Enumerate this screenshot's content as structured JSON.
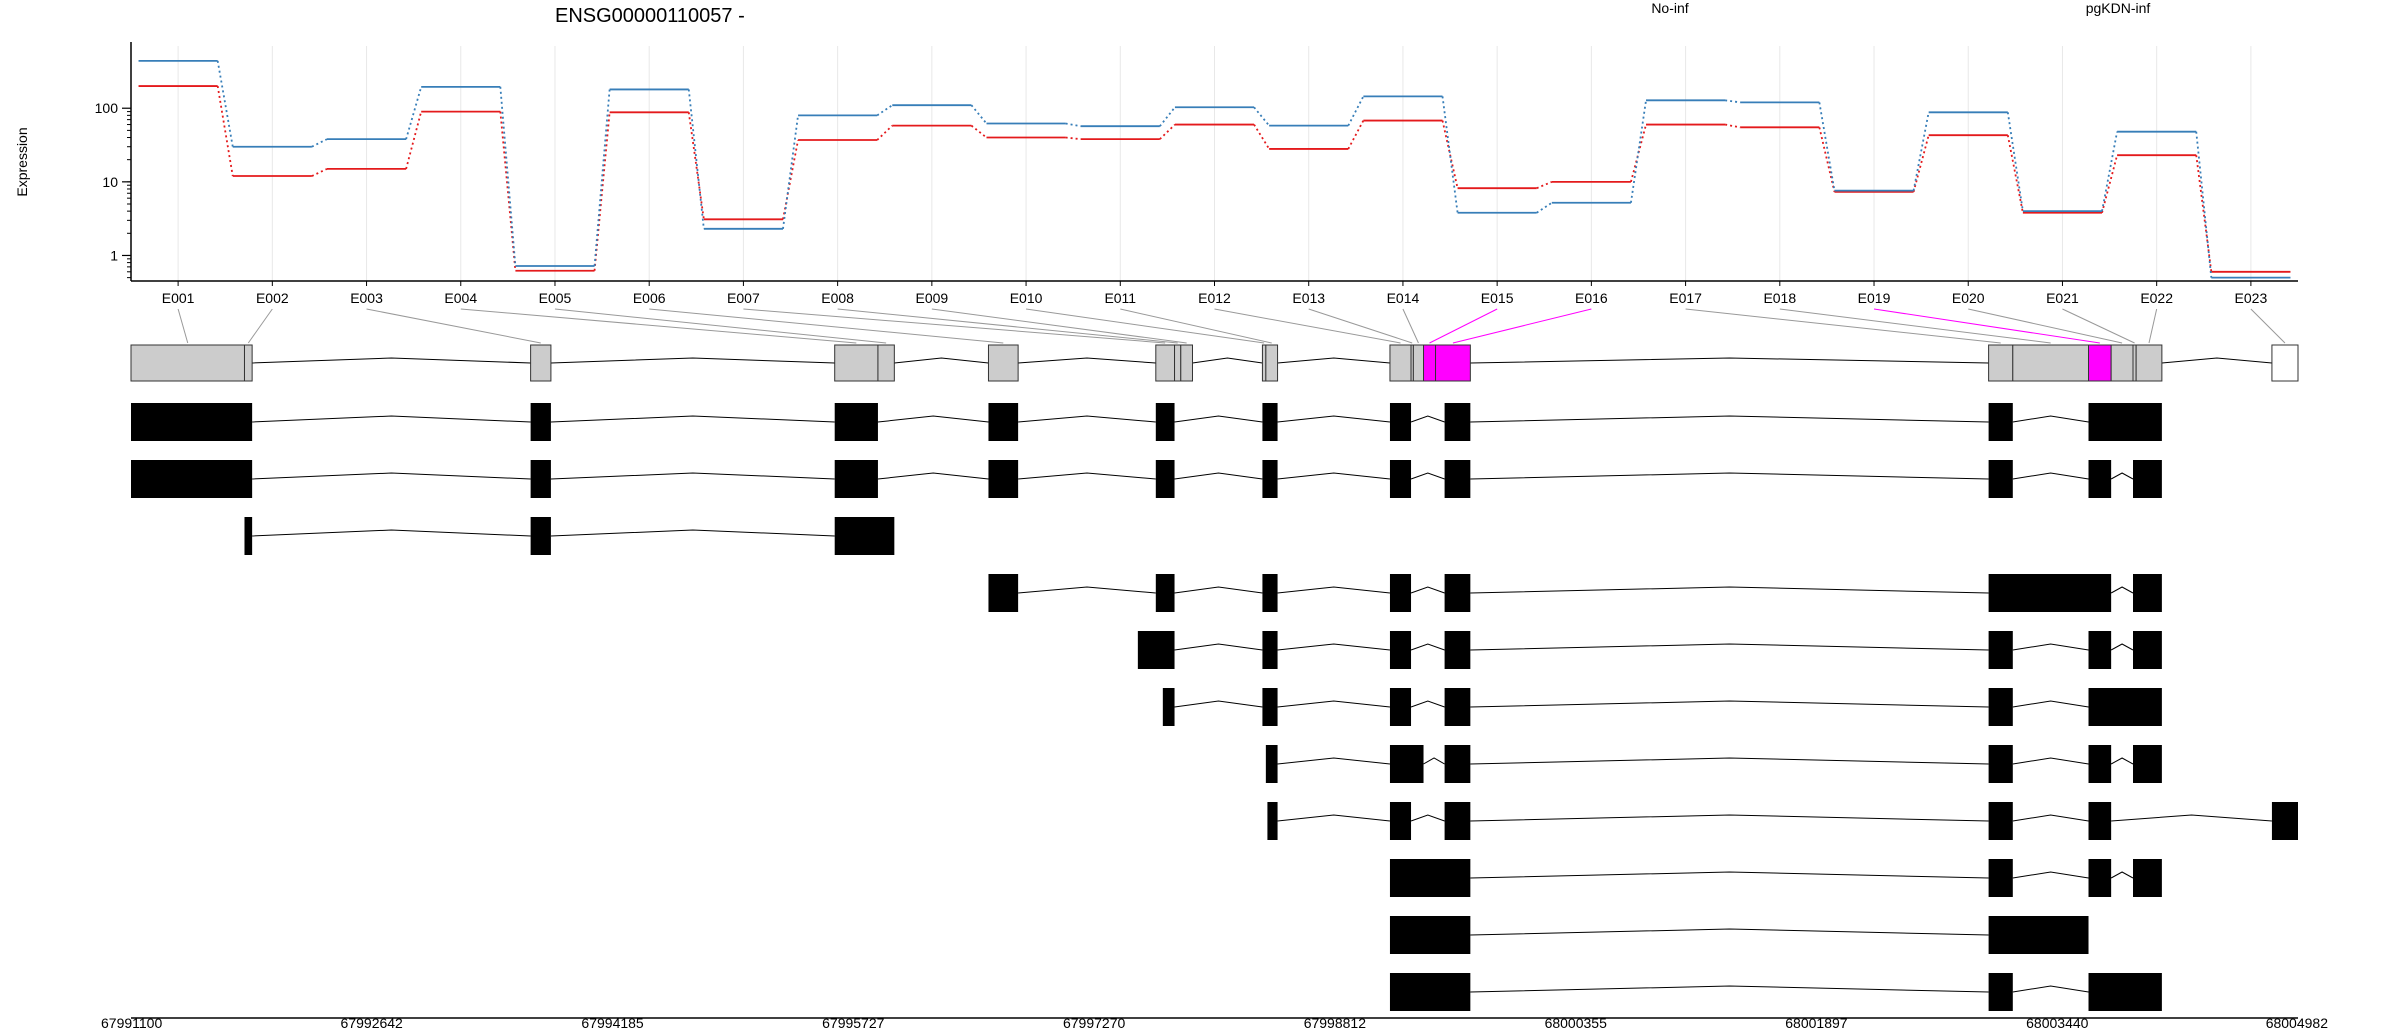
{
  "chart_data": {
    "type": "line",
    "title": "ENSG00000110057 -",
    "ylabel": "Expression",
    "y_scale": "log",
    "y_ticks": [
      "1",
      "10",
      "100"
    ],
    "ylim": [
      0.45,
      700
    ],
    "categories": [
      "E001",
      "E002",
      "E003",
      "E004",
      "E005",
      "E006",
      "E007",
      "E008",
      "E009",
      "E010",
      "E011",
      "E012",
      "E013",
      "E014",
      "E015",
      "E016",
      "E017",
      "E018",
      "E019",
      "E020",
      "E021",
      "E022",
      "E023"
    ],
    "series": [
      {
        "name": "No-inf",
        "color": "#e41a1c",
        "values": [
          200,
          12,
          15,
          90,
          0.62,
          88,
          3.1,
          37,
          58,
          40,
          38,
          60,
          28,
          68,
          8.2,
          10,
          60,
          55,
          7.3,
          43,
          3.8,
          23,
          0.6
        ]
      },
      {
        "name": "pgKDN-inf",
        "color": "#377eb8",
        "values": [
          440,
          30,
          38,
          195,
          0.72,
          180,
          2.3,
          80,
          110,
          62,
          57,
          103,
          58,
          145,
          3.8,
          5.2,
          128,
          120,
          7.6,
          88,
          4.0,
          48,
          0.5
        ]
      }
    ],
    "grid": true,
    "legend": "top-right",
    "genomic_axis": {
      "range": [
        67991100,
        68004982
      ],
      "tick_labels": [
        "67991100",
        "67992642",
        "67994185",
        "67995727",
        "67997270",
        "67998812",
        "68000355",
        "68001897",
        "68003440",
        "68004982"
      ]
    },
    "highlight_color": "#ff00ff",
    "significant_exons": [
      "E015",
      "E016",
      "E019"
    ],
    "exon_segments": [
      {
        "id": "E001",
        "start": 67991100,
        "end": 67991827
      },
      {
        "id": "E002",
        "start": 67991827,
        "end": 67991876
      },
      {
        "id": "E003",
        "start": 67993660,
        "end": 67993790
      },
      {
        "id": "E004",
        "start": 67995608,
        "end": 67995885
      },
      {
        "id": "E005",
        "start": 67995885,
        "end": 67995990
      },
      {
        "id": "E006",
        "start": 67996593,
        "end": 67996783
      },
      {
        "id": "E007",
        "start": 67997665,
        "end": 67997785
      },
      {
        "id": "E008",
        "start": 67997785,
        "end": 67997825
      },
      {
        "id": "E009",
        "start": 67997825,
        "end": 67997900
      },
      {
        "id": "E010",
        "start": 67998348,
        "end": 67998370
      },
      {
        "id": "E011",
        "start": 67998370,
        "end": 67998445
      },
      {
        "id": "E012",
        "start": 67999165,
        "end": 67999300
      },
      {
        "id": "E013",
        "start": 67999300,
        "end": 67999315
      },
      {
        "id": "E014",
        "start": 67999315,
        "end": 67999380
      },
      {
        "id": "E015",
        "start": 67999380,
        "end": 67999457
      },
      {
        "id": "E016",
        "start": 67999457,
        "end": 67999680
      },
      {
        "id": "E017",
        "start": 68003000,
        "end": 68003155
      },
      {
        "id": "E018",
        "start": 68003155,
        "end": 68003640
      },
      {
        "id": "E019",
        "start": 68003640,
        "end": 68003785
      },
      {
        "id": "E020",
        "start": 68003785,
        "end": 68003925
      },
      {
        "id": "E021",
        "start": 68003925,
        "end": 68003945
      },
      {
        "id": "E022",
        "start": 68003945,
        "end": 68004110
      },
      {
        "id": "E023",
        "start": 68004815,
        "end": 68004982
      }
    ],
    "transcripts": [
      {
        "exons": [
          [
            67991100,
            67991876
          ],
          [
            67993660,
            67993790
          ],
          [
            67995608,
            67995885
          ],
          [
            67996593,
            67996783
          ],
          [
            67997665,
            67997785
          ],
          [
            67998348,
            67998445
          ],
          [
            67999165,
            67999300
          ],
          [
            67999515,
            67999680
          ],
          [
            68003000,
            68003155
          ],
          [
            68003640,
            68004110
          ]
        ]
      },
      {
        "exons": [
          [
            67991100,
            67991876
          ],
          [
            67993660,
            67993790
          ],
          [
            67995608,
            67995885
          ],
          [
            67996593,
            67996783
          ],
          [
            67997665,
            67997785
          ],
          [
            67998348,
            67998445
          ],
          [
            67999165,
            67999300
          ],
          [
            67999515,
            67999680
          ],
          [
            68003000,
            68003155
          ],
          [
            68003640,
            68003785
          ],
          [
            68003925,
            68004110
          ]
        ]
      },
      {
        "exons": [
          [
            67991827,
            67991876
          ],
          [
            67993660,
            67993790
          ],
          [
            67995608,
            67995990
          ]
        ]
      },
      {
        "exons": [
          [
            67996593,
            67996783
          ],
          [
            67997665,
            67997785
          ],
          [
            67998348,
            67998445
          ],
          [
            67999165,
            67999300
          ],
          [
            67999515,
            67999680
          ],
          [
            68003000,
            68003785
          ],
          [
            68003925,
            68004110
          ]
        ]
      },
      {
        "exons": [
          [
            67997550,
            67997785
          ],
          [
            67998348,
            67998445
          ],
          [
            67999165,
            67999300
          ],
          [
            67999515,
            67999680
          ],
          [
            68003000,
            68003155
          ],
          [
            68003640,
            68003785
          ],
          [
            68003925,
            68004110
          ]
        ]
      },
      {
        "exons": [
          [
            67997710,
            67997785
          ],
          [
            67998348,
            67998445
          ],
          [
            67999165,
            67999300
          ],
          [
            67999515,
            67999680
          ],
          [
            68003000,
            68003155
          ],
          [
            68003640,
            68004110
          ]
        ]
      },
      {
        "exons": [
          [
            67998370,
            67998445
          ],
          [
            67999165,
            67999380
          ],
          [
            67999515,
            67999680
          ],
          [
            68003000,
            68003155
          ],
          [
            68003640,
            68003785
          ],
          [
            68003925,
            68004110
          ]
        ]
      },
      {
        "exons": [
          [
            67998380,
            67998445
          ],
          [
            67999165,
            67999300
          ],
          [
            67999515,
            67999680
          ],
          [
            68003000,
            68003155
          ],
          [
            68003640,
            68003785
          ],
          [
            68004815,
            68004982
          ]
        ]
      },
      {
        "exons": [
          [
            67999165,
            67999680
          ],
          [
            68003000,
            68003155
          ],
          [
            68003640,
            68003785
          ],
          [
            68003925,
            68004110
          ]
        ]
      },
      {
        "exons": [
          [
            67999165,
            67999680
          ],
          [
            68003000,
            68003640
          ]
        ]
      },
      {
        "exons": [
          [
            67999165,
            67999680
          ],
          [
            68003000,
            68003155
          ],
          [
            68003640,
            68004110
          ]
        ]
      }
    ]
  }
}
